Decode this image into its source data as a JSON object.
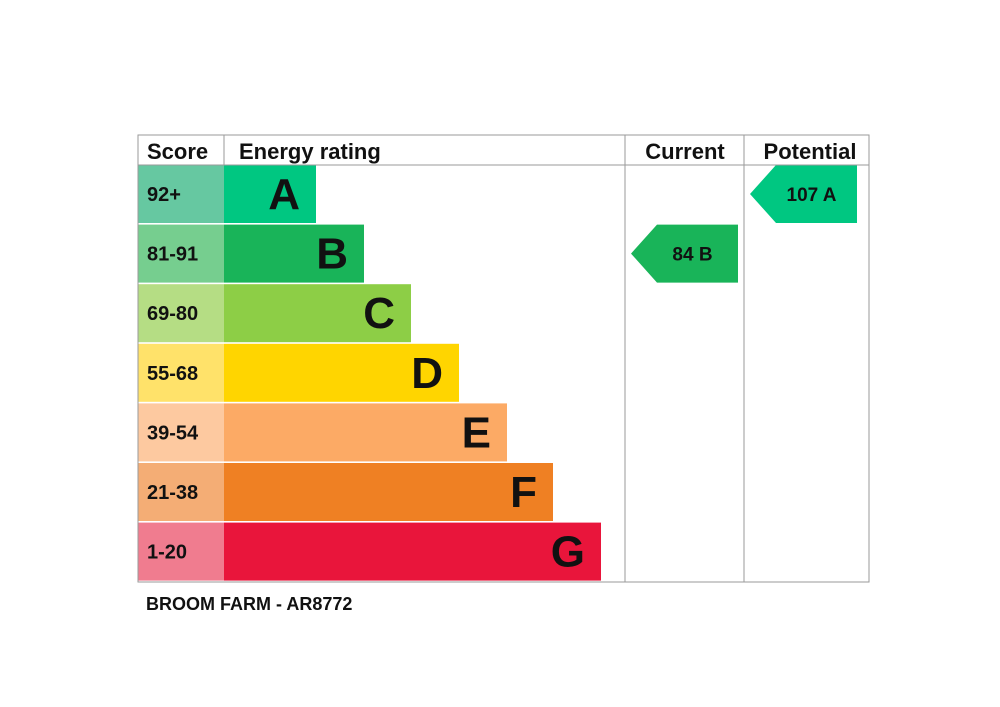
{
  "headers": {
    "score": "Score",
    "energy_rating": "Energy rating",
    "current": "Current",
    "potential": "Potential"
  },
  "chart_data": {
    "type": "bar",
    "bands": [
      {
        "letter": "A",
        "score_range": "92+",
        "bar_color": "#00c781",
        "score_color": "#66c8a1"
      },
      {
        "letter": "B",
        "score_range": "81-91",
        "bar_color": "#19b459",
        "score_color": "#76ce8f"
      },
      {
        "letter": "C",
        "score_range": "69-80",
        "bar_color": "#8dce46",
        "score_color": "#b5dd84"
      },
      {
        "letter": "D",
        "score_range": "55-68",
        "bar_color": "#ffd500",
        "score_color": "#ffe26a"
      },
      {
        "letter": "E",
        "score_range": "39-54",
        "bar_color": "#fcaa65",
        "score_color": "#fdc9a0"
      },
      {
        "letter": "F",
        "score_range": "21-38",
        "bar_color": "#ef8023",
        "score_color": "#f4ad75"
      },
      {
        "letter": "G",
        "score_range": "1-20",
        "bar_color": "#e9153b",
        "score_color": "#f07c8f"
      }
    ],
    "current": {
      "score": 84,
      "band": "B",
      "label": "84  B",
      "color": "#19b459"
    },
    "potential": {
      "score": 107,
      "band": "A",
      "label": "107  A",
      "color": "#00c781"
    }
  },
  "footer": {
    "property_label": "BROOM FARM - AR8772"
  }
}
